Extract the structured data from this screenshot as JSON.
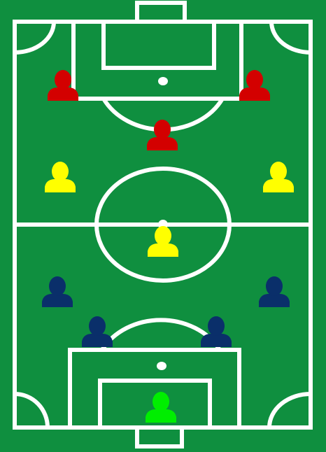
{
  "colors": {
    "pitch": "#0f8f3f",
    "lines": "#ffffff",
    "team_red": "#d30000",
    "team_yellow": "#ffff00",
    "team_navy": "#0a2f6a",
    "goalkeeper": "#00ee00"
  },
  "players": [
    {
      "team": "red",
      "icon": "person-icon"
    },
    {
      "team": "red",
      "icon": "person-icon"
    },
    {
      "team": "red",
      "icon": "person-icon"
    },
    {
      "team": "yellow",
      "icon": "person-icon"
    },
    {
      "team": "yellow",
      "icon": "person-icon"
    },
    {
      "team": "yellow",
      "icon": "person-icon"
    },
    {
      "team": "navy",
      "icon": "person-icon"
    },
    {
      "team": "navy",
      "icon": "person-icon"
    },
    {
      "team": "navy",
      "icon": "person-icon"
    },
    {
      "team": "navy",
      "icon": "person-icon"
    },
    {
      "team": "goalkeeper",
      "icon": "person-icon"
    }
  ]
}
